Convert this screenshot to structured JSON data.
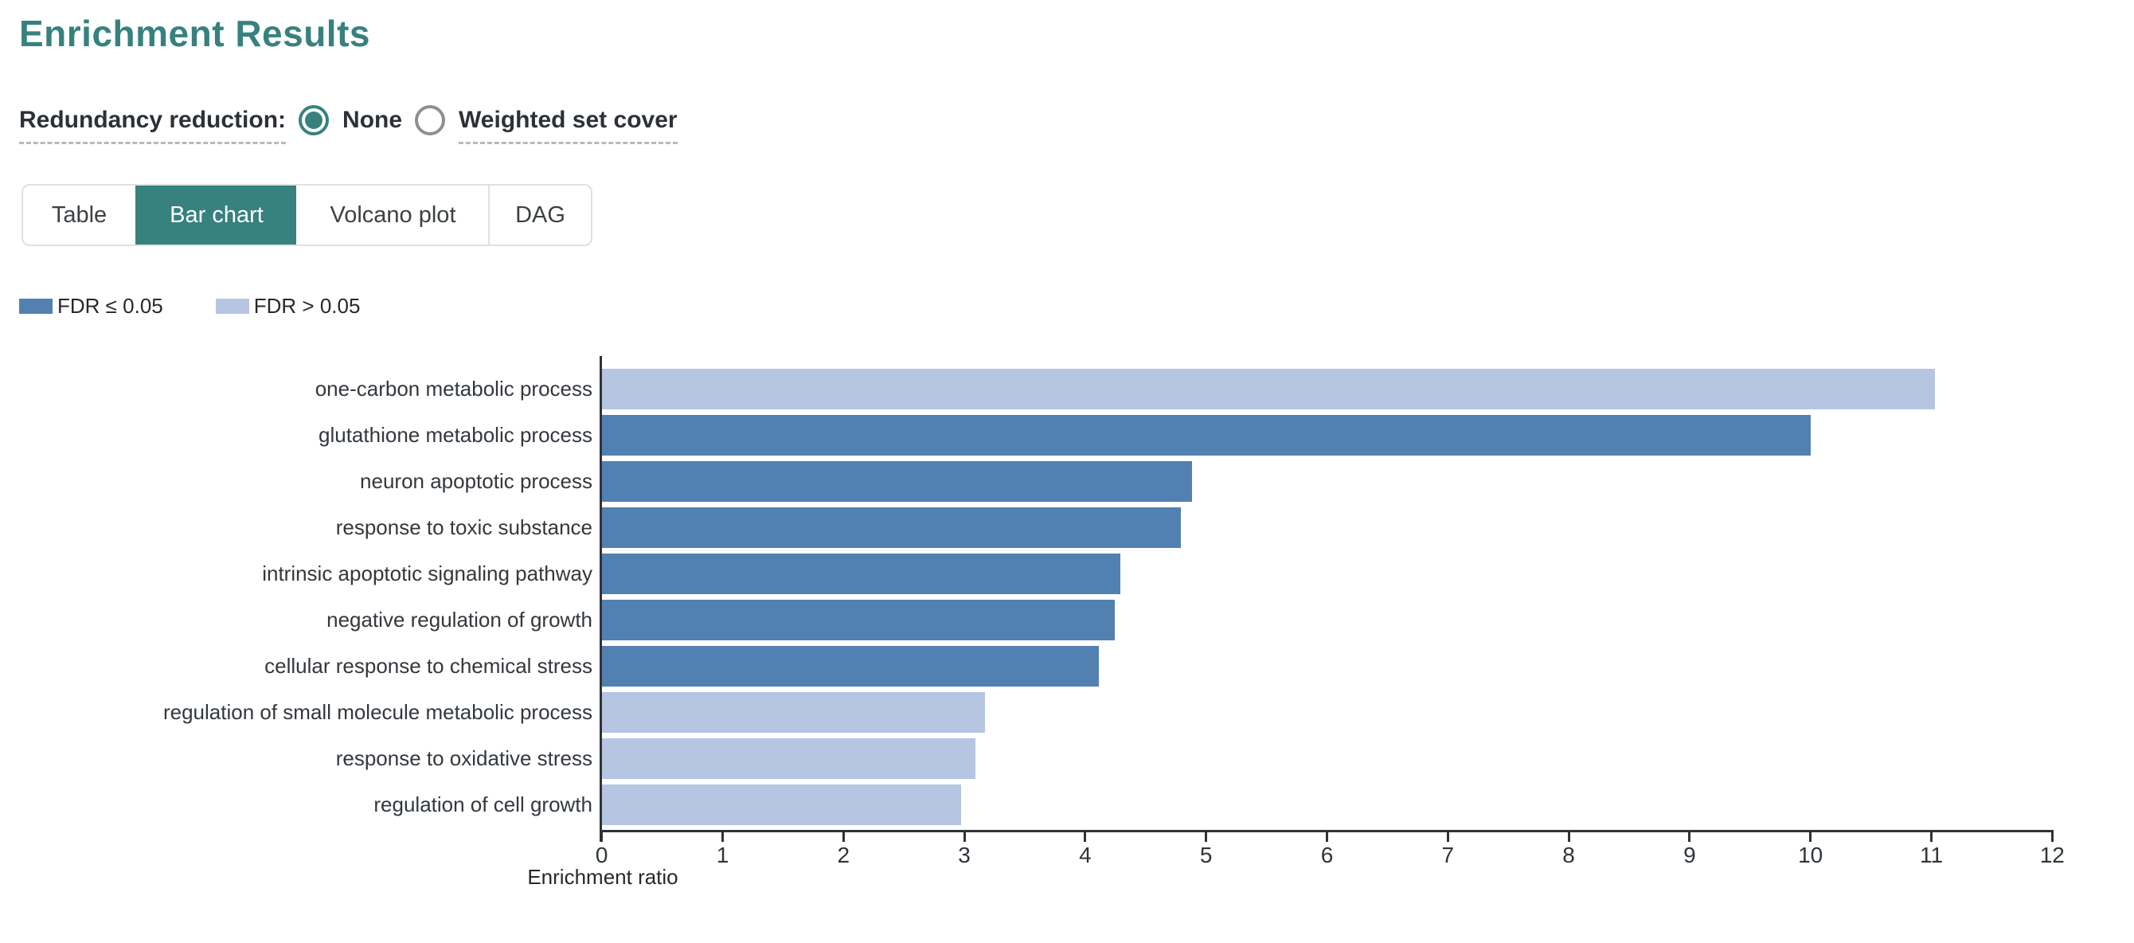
{
  "page_title": "Enrichment Results",
  "controls": {
    "label": "Redundancy reduction:",
    "options": [
      {
        "label": "None",
        "selected": true
      },
      {
        "label": "Weighted set cover",
        "selected": false
      }
    ]
  },
  "tabs": [
    {
      "label": "Table",
      "active": false
    },
    {
      "label": "Bar chart",
      "active": true
    },
    {
      "label": "Volcano plot",
      "active": false
    },
    {
      "label": "DAG",
      "active": false
    }
  ],
  "legend": [
    {
      "label": "FDR ≤ 0.05",
      "color": "#5281b1"
    },
    {
      "label": "FDR > 0.05",
      "color": "#b6c5e1"
    }
  ],
  "colors": {
    "accent": "#37817e",
    "ink": "#2e3338",
    "significant_bar": "#5281b1",
    "not_significant_bar": "#b6c5e1"
  },
  "chart_data": {
    "type": "bar",
    "orientation": "horizontal",
    "xlabel": "Enrichment ratio",
    "xlim": [
      0,
      12
    ],
    "xticks": [
      0,
      1,
      2,
      3,
      4,
      5,
      6,
      7,
      8,
      9,
      10,
      11,
      12
    ],
    "grid": false,
    "legend_position": "top-left",
    "categories": [
      "one-carbon metabolic process",
      "glutathione metabolic process",
      "neuron apoptotic process",
      "response to toxic substance",
      "intrinsic apoptotic signaling pathway",
      "negative regulation of growth",
      "cellular response to chemical stress",
      "regulation of small molecule metabolic process",
      "response to oxidative stress",
      "regulation of cell growth"
    ],
    "series": [
      {
        "name": "Enrichment ratio",
        "values": [
          11.03,
          10.0,
          4.88,
          4.79,
          4.29,
          4.24,
          4.11,
          3.17,
          3.09,
          2.97
        ],
        "fdr_significant": [
          false,
          true,
          true,
          true,
          true,
          true,
          true,
          false,
          false,
          false
        ]
      }
    ]
  }
}
